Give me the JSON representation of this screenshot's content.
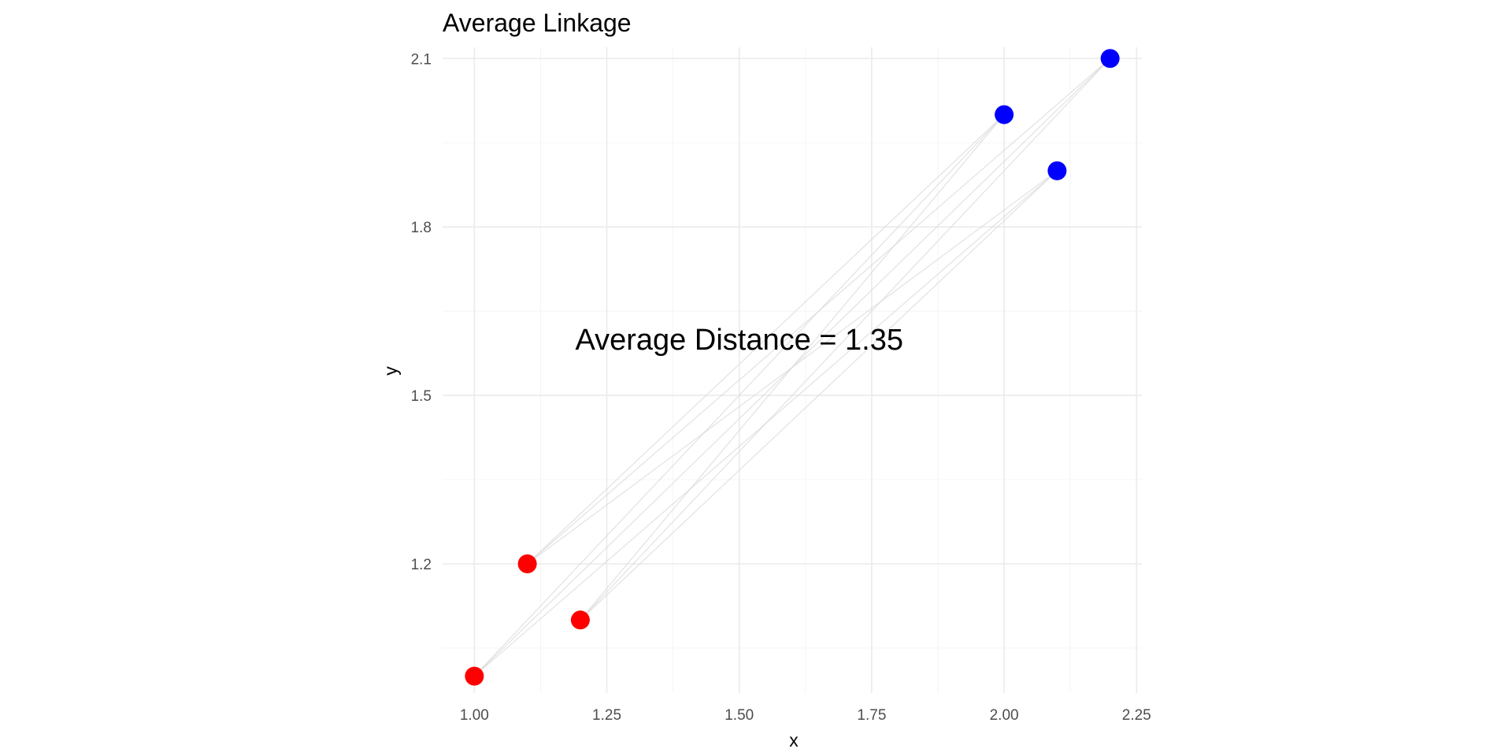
{
  "chart_data": {
    "type": "scatter",
    "title": "Average Linkage",
    "xlabel": "x",
    "ylabel": "y",
    "xlim": [
      0.94,
      2.26
    ],
    "ylim": [
      0.97,
      2.12
    ],
    "x_ticks": [
      1.0,
      1.25,
      1.5,
      1.75,
      2.0,
      2.25
    ],
    "x_tick_labels": [
      "1.00",
      "1.25",
      "1.50",
      "1.75",
      "2.00",
      "2.25"
    ],
    "x_minor_ticks": [
      1.125,
      1.375,
      1.625,
      1.875,
      2.125
    ],
    "y_ticks": [
      1.2,
      1.5,
      1.8,
      2.1
    ],
    "y_tick_labels": [
      "1.2",
      "1.5",
      "1.8",
      "2.1"
    ],
    "y_minor_ticks": [
      1.05,
      1.35,
      1.65,
      1.95
    ],
    "grid": true,
    "series": [
      {
        "color": "#ff0000",
        "points": [
          {
            "x": 1.0,
            "y": 1.0
          },
          {
            "x": 1.1,
            "y": 1.2
          },
          {
            "x": 1.2,
            "y": 1.1
          }
        ]
      },
      {
        "color": "#0000ff",
        "points": [
          {
            "x": 2.0,
            "y": 2.0
          },
          {
            "x": 2.1,
            "y": 1.9
          },
          {
            "x": 2.2,
            "y": 2.1
          }
        ]
      }
    ],
    "links_color": "#d9d9d9",
    "annotation": {
      "text": "Average Distance = 1.35",
      "x": 1.5,
      "y": 1.6
    }
  }
}
